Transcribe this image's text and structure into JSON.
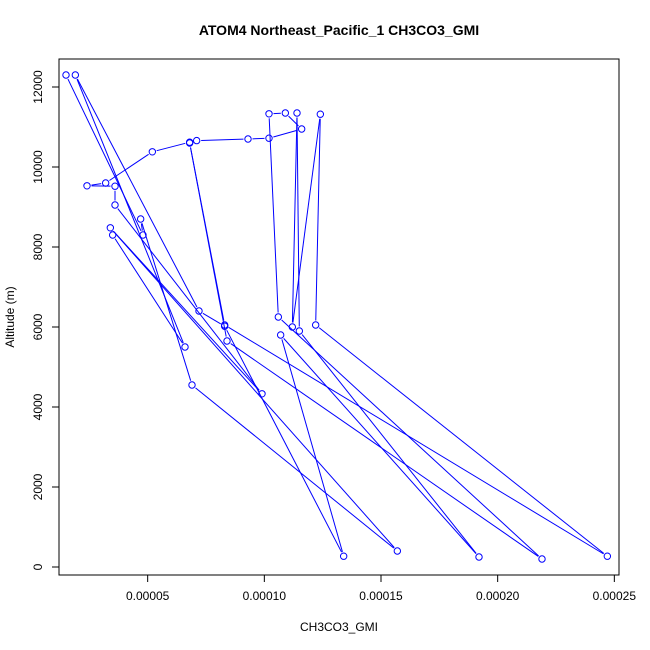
{
  "chart_data": {
    "type": "line",
    "title": "ATOM4 Northeast_Pacific_1 CH3CO3_GMI",
    "xlabel": "CH3CO3_GMI",
    "ylabel": "Altitude (m)",
    "xlim": [
      1.2e-05,
      0.000252
    ],
    "ylim": [
      -200,
      12700
    ],
    "x_ticks": [
      5e-05,
      0.0001,
      0.00015,
      0.0002,
      0.00025
    ],
    "x_tick_labels": [
      "0.00005",
      "0.00010",
      "0.00015",
      "0.00020",
      "0.00025"
    ],
    "y_ticks": [
      0,
      2000,
      4000,
      6000,
      8000,
      10000,
      12000
    ],
    "y_tick_labels": [
      "0",
      "2000",
      "4000",
      "6000",
      "8000",
      "10000",
      "12000"
    ],
    "color": "#0000ff",
    "series": [
      {
        "points": [
          [
            1.5e-05,
            12300
          ],
          [
            4.8e-05,
            8300
          ],
          [
            4.7e-05,
            8700
          ],
          [
            6.9e-05,
            4550
          ],
          [
            0.000157,
            400
          ],
          [
            3.4e-05,
            8480
          ],
          [
            9.9e-05,
            4330
          ],
          [
            3.6e-05,
            9050
          ],
          [
            3.6e-05,
            9520
          ],
          [
            2.4e-05,
            9530
          ],
          [
            3.2e-05,
            9600
          ],
          [
            5.2e-05,
            10380
          ],
          [
            6.8e-05,
            10620
          ],
          [
            7.1e-05,
            10660
          ],
          [
            9.3e-05,
            10700
          ],
          [
            0.000102,
            10720
          ],
          [
            0.000116,
            10950
          ],
          [
            0.000109,
            11350
          ],
          [
            0.000102,
            11330
          ],
          [
            0.000106,
            6250
          ],
          [
            0.000219,
            200
          ],
          [
            8.4e-05,
            5650
          ],
          [
            6.8e-05,
            10600
          ],
          [
            8.3e-05,
            6050
          ],
          [
            0.000247,
            270
          ],
          [
            0.000122,
            6050
          ],
          [
            0.000124,
            11320
          ],
          [
            0.000112,
            6000
          ],
          [
            0.000114,
            11350
          ],
          [
            0.000115,
            5900
          ],
          [
            0.000192,
            250
          ],
          [
            0.000107,
            5800
          ],
          [
            0.000134,
            270
          ],
          [
            8.3e-05,
            6020
          ],
          [
            7.2e-05,
            6400
          ],
          [
            1.9e-05,
            12300
          ],
          [
            6.6e-05,
            5500
          ],
          [
            3.5e-05,
            8300
          ]
        ]
      }
    ]
  }
}
